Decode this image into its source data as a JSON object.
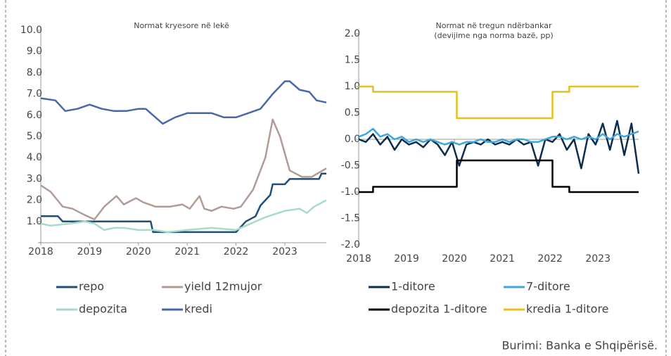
{
  "chart_data": [
    {
      "type": "line",
      "title": "Normat kryesore në lekë",
      "xlim": [
        2018,
        2023.85
      ],
      "xticks": [
        2018,
        2019,
        2020,
        2021,
        2022,
        2023
      ],
      "ylim": [
        0,
        10
      ],
      "yticks": [
        {
          "value": 0,
          "label": "-"
        },
        {
          "value": 1,
          "label": "1.0"
        },
        {
          "value": 2,
          "label": "2.0"
        },
        {
          "value": 3,
          "label": "3.0"
        },
        {
          "value": 4,
          "label": "4.0"
        },
        {
          "value": 5,
          "label": "5.0"
        },
        {
          "value": 6,
          "label": "6.0"
        },
        {
          "value": 7,
          "label": "7.0"
        },
        {
          "value": 8,
          "label": "8.0"
        },
        {
          "value": 9,
          "label": "9.0"
        },
        {
          "value": 10,
          "label": "10.0"
        }
      ],
      "series": [
        {
          "name": "repo",
          "color": "#1f4e79",
          "x": [
            2018,
            2018.35,
            2018.45,
            2020.25,
            2020.3,
            2022.0,
            2022.2,
            2022.4,
            2022.5,
            2022.7,
            2022.75,
            2023.0,
            2023.1,
            2023.7,
            2023.75,
            2023.85
          ],
          "values": [
            1.25,
            1.25,
            1.0,
            1.0,
            0.5,
            0.5,
            1.0,
            1.25,
            1.75,
            2.25,
            2.75,
            2.75,
            3.0,
            3.0,
            3.25,
            3.25
          ]
        },
        {
          "name": "yield 12mujor",
          "color": "#b29b95",
          "x": [
            2018,
            2018.2,
            2018.45,
            2018.65,
            2018.9,
            2019.1,
            2019.3,
            2019.55,
            2019.7,
            2019.95,
            2020.1,
            2020.35,
            2020.65,
            2020.9,
            2021.05,
            2021.25,
            2021.35,
            2021.5,
            2021.7,
            2021.95,
            2022.1,
            2022.35,
            2022.6,
            2022.75,
            2022.9,
            2023.1,
            2023.35,
            2023.55,
            2023.7,
            2023.85
          ],
          "values": [
            2.7,
            2.4,
            1.7,
            1.6,
            1.3,
            1.1,
            1.7,
            2.2,
            1.8,
            2.1,
            1.9,
            1.7,
            1.7,
            1.8,
            1.6,
            2.2,
            1.6,
            1.5,
            1.7,
            1.6,
            1.7,
            2.5,
            4.0,
            5.8,
            5.0,
            3.4,
            3.1,
            3.1,
            3.3,
            3.5
          ]
        },
        {
          "name": "depozita",
          "color": "#a6dcc6",
          "x": [
            2018,
            2018.2,
            2018.6,
            2018.9,
            2019.1,
            2019.3,
            2019.5,
            2019.7,
            2020.0,
            2020.3,
            2020.6,
            2021.0,
            2021.5,
            2022.0,
            2022.3,
            2022.6,
            2023.0,
            2023.3,
            2023.45,
            2023.6,
            2023.85
          ],
          "values": [
            0.9,
            0.8,
            0.9,
            1.0,
            0.9,
            0.6,
            0.7,
            0.7,
            0.6,
            0.6,
            0.5,
            0.6,
            0.7,
            0.6,
            0.9,
            1.2,
            1.5,
            1.6,
            1.4,
            1.7,
            2.0
          ]
        },
        {
          "name": "kredi",
          "color": "#4a67ab",
          "x": [
            2018,
            2018.3,
            2018.5,
            2018.75,
            2019.0,
            2019.25,
            2019.5,
            2019.75,
            2020.0,
            2020.15,
            2020.3,
            2020.5,
            2020.75,
            2021.0,
            2021.25,
            2021.5,
            2021.75,
            2022.0,
            2022.25,
            2022.5,
            2022.75,
            2023.0,
            2023.1,
            2023.3,
            2023.5,
            2023.65,
            2023.85
          ],
          "values": [
            6.8,
            6.7,
            6.2,
            6.3,
            6.5,
            6.3,
            6.2,
            6.2,
            6.3,
            6.3,
            6.0,
            5.6,
            5.9,
            6.1,
            6.1,
            6.1,
            5.9,
            5.9,
            6.1,
            6.3,
            7.0,
            7.6,
            7.6,
            7.2,
            7.1,
            6.7,
            6.6
          ]
        }
      ]
    },
    {
      "type": "line",
      "title": "Normat në tregun ndërbankar",
      "subtitle": "(devijime nga norma bazë, pp)",
      "xlim": [
        2018,
        2023.85
      ],
      "xticks": [
        2018,
        2019,
        2020,
        2021,
        2022,
        2023
      ],
      "ylim": [
        -2,
        2
      ],
      "yticks": [
        {
          "value": -2,
          "label": "-2.0"
        },
        -1.5,
        {
          "value": -1,
          "label": "-1.0"
        },
        -0.5,
        {
          "value": 0,
          "label": "0.0"
        },
        0.5,
        {
          "value": 1,
          "label": "1.0"
        },
        1.5,
        {
          "value": 2,
          "label": "2.0"
        }
      ],
      "series": [
        {
          "name": "1-ditore",
          "color": "#0d2d4f",
          "x": [
            2018,
            2018.15,
            2018.3,
            2018.45,
            2018.6,
            2018.75,
            2018.9,
            2019.05,
            2019.2,
            2019.35,
            2019.5,
            2019.65,
            2019.8,
            2019.95,
            2020.1,
            2020.25,
            2020.4,
            2020.55,
            2020.7,
            2020.85,
            2021.0,
            2021.15,
            2021.3,
            2021.45,
            2021.6,
            2021.75,
            2021.9,
            2022.05,
            2022.2,
            2022.35,
            2022.5,
            2022.65,
            2022.8,
            2022.95,
            2023.1,
            2023.25,
            2023.4,
            2023.55,
            2023.7,
            2023.85
          ],
          "values": [
            0.0,
            -0.05,
            0.1,
            -0.1,
            0.05,
            -0.2,
            0.0,
            -0.1,
            -0.05,
            -0.15,
            0.0,
            -0.1,
            -0.3,
            -0.05,
            -0.5,
            -0.1,
            -0.05,
            -0.1,
            0.0,
            -0.1,
            -0.05,
            -0.1,
            0.0,
            -0.1,
            -0.05,
            -0.5,
            0.0,
            -0.05,
            0.1,
            -0.2,
            0.0,
            -0.55,
            0.1,
            -0.1,
            0.3,
            -0.2,
            0.35,
            -0.3,
            0.3,
            -0.65
          ]
        },
        {
          "name": "7-ditore",
          "color": "#3ea6dc",
          "x": [
            2018,
            2018.15,
            2018.3,
            2018.45,
            2018.6,
            2018.75,
            2018.9,
            2019.05,
            2019.2,
            2019.35,
            2019.5,
            2019.65,
            2019.8,
            2019.95,
            2020.1,
            2020.25,
            2020.4,
            2020.55,
            2020.7,
            2020.85,
            2021.0,
            2021.15,
            2021.3,
            2021.45,
            2021.6,
            2021.75,
            2021.9,
            2022.05,
            2022.2,
            2022.35,
            2022.5,
            2022.65,
            2022.8,
            2022.95,
            2023.1,
            2023.25,
            2023.4,
            2023.55,
            2023.7,
            2023.85
          ],
          "values": [
            0.05,
            0.1,
            0.2,
            0.05,
            0.1,
            0.0,
            0.05,
            -0.05,
            0.0,
            -0.05,
            0.0,
            -0.05,
            -0.1,
            -0.05,
            -0.1,
            -0.05,
            -0.05,
            0.0,
            -0.05,
            -0.05,
            0.0,
            -0.05,
            0.0,
            0.0,
            -0.05,
            -0.05,
            0.0,
            0.05,
            0.05,
            0.0,
            0.05,
            0.0,
            0.05,
            0.0,
            0.1,
            0.0,
            0.1,
            0.05,
            0.1,
            0.15
          ]
        },
        {
          "name": "depozita 1-ditore",
          "color": "#000000",
          "x": [
            2018,
            2018.3,
            2018.3,
            2020.05,
            2020.05,
            2022.05,
            2022.05,
            2022.4,
            2022.4,
            2023.85
          ],
          "values": [
            -1.0,
            -1.0,
            -0.9,
            -0.9,
            -0.4,
            -0.4,
            -0.9,
            -0.9,
            -1.0,
            -1.0
          ]
        },
        {
          "name": "kredia 1-ditore",
          "color": "#e6c01b",
          "x": [
            2018,
            2018.3,
            2018.3,
            2020.05,
            2020.05,
            2022.05,
            2022.05,
            2022.4,
            2022.4,
            2023.85
          ],
          "values": [
            1.0,
            1.0,
            0.9,
            0.9,
            0.4,
            0.4,
            0.9,
            0.9,
            1.0,
            1.0
          ]
        }
      ]
    }
  ],
  "source": "Burimi: Banka e Shqipërisë."
}
